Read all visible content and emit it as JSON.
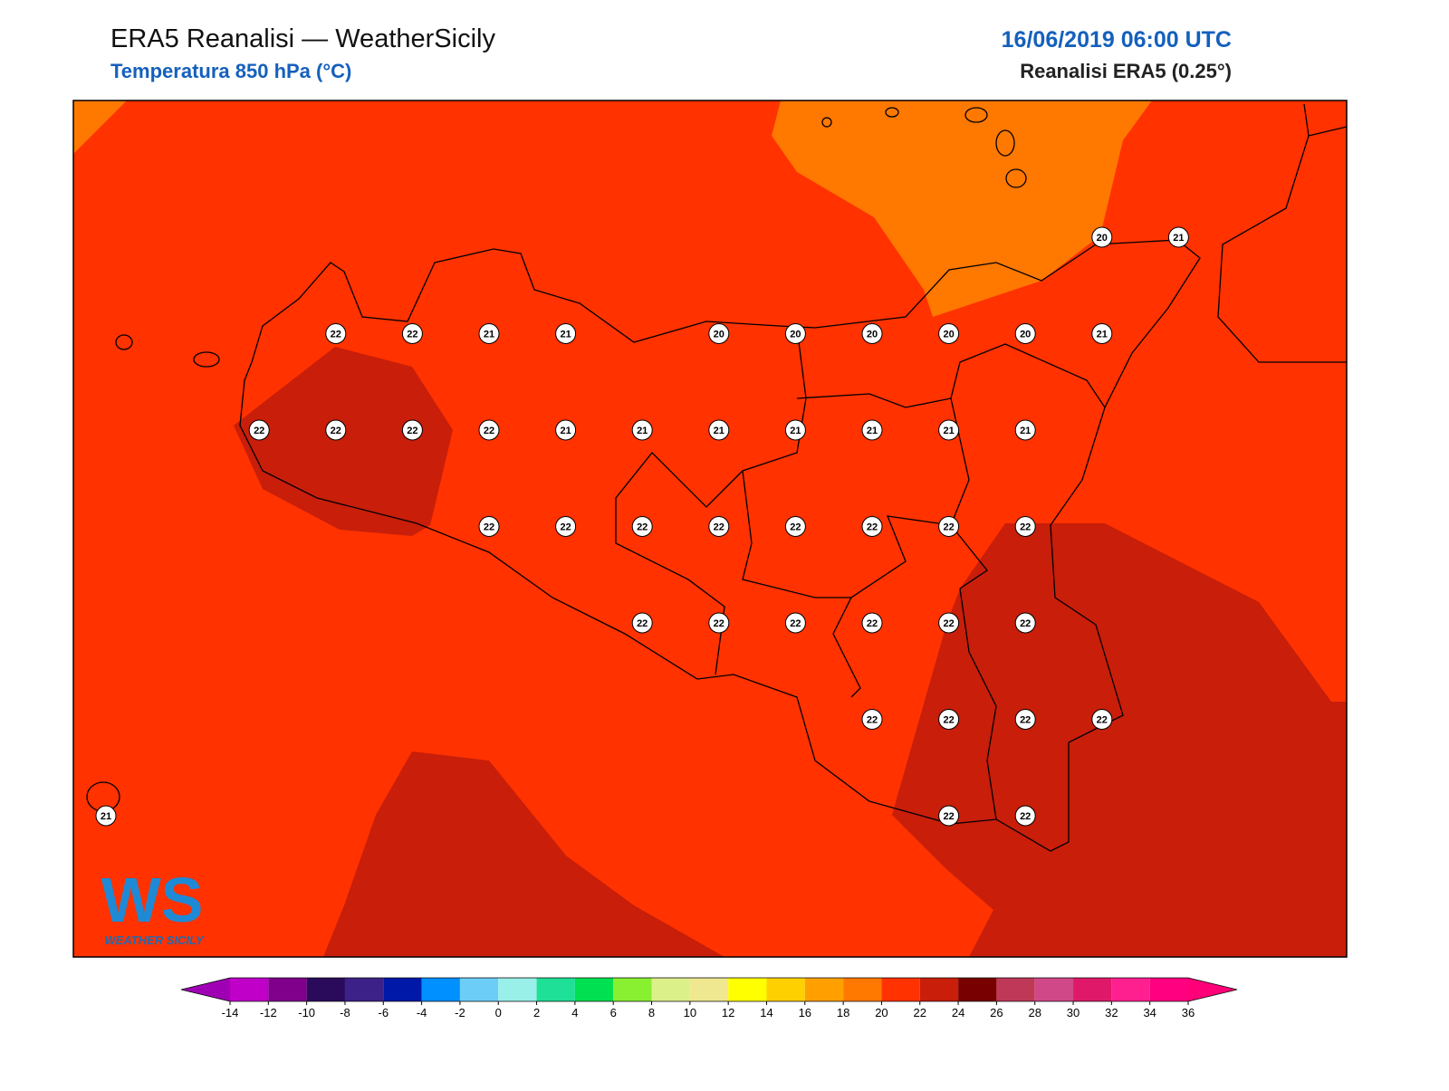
{
  "header": {
    "title": "ERA5 Reanalisi — WeatherSicily",
    "subtitle": "Temperatura 850 hPa (°C)",
    "datetime": "16/06/2019 06:00 UTC",
    "source": "Reanalisi ERA5 (0.25°)"
  },
  "logo": {
    "mark": "WS",
    "text": "WEATHER SICILY"
  },
  "temperature_grid": [
    [
      null,
      null,
      null,
      null,
      null,
      null,
      null,
      null,
      null,
      null,
      null,
      null,
      null,
      20,
      21
    ],
    [
      null,
      null,
      null,
      22,
      22,
      21,
      21,
      null,
      20,
      20,
      20,
      20,
      20,
      21,
      null
    ],
    [
      null,
      null,
      22,
      22,
      22,
      22,
      21,
      21,
      21,
      21,
      21,
      21,
      21,
      null,
      null
    ],
    [
      null,
      null,
      null,
      null,
      null,
      22,
      22,
      22,
      22,
      22,
      22,
      22,
      22,
      null,
      null
    ],
    [
      null,
      null,
      null,
      null,
      null,
      null,
      null,
      22,
      22,
      22,
      22,
      22,
      22,
      null,
      null
    ],
    [
      null,
      null,
      null,
      null,
      null,
      null,
      null,
      null,
      null,
      null,
      22,
      22,
      22,
      22,
      null
    ],
    [
      21,
      null,
      null,
      null,
      null,
      null,
      null,
      null,
      null,
      null,
      null,
      22,
      22,
      null,
      null
    ]
  ],
  "colorbar": {
    "ticks": [
      -14,
      -12,
      -10,
      -8,
      -6,
      -4,
      -2,
      0,
      2,
      4,
      6,
      8,
      10,
      12,
      14,
      16,
      18,
      20,
      22,
      24,
      26,
      28,
      30,
      32,
      34,
      36
    ],
    "colors": [
      "#c000c8",
      "#80008c",
      "#2a0a5a",
      "#3c2288",
      "#0018a8",
      "#0090ff",
      "#6ccdf6",
      "#98f0e8",
      "#1ee096",
      "#00e050",
      "#88f030",
      "#dcf08a",
      "#f0e890",
      "#ffff00",
      "#ffd000",
      "#ffa000",
      "#ff7800",
      "#ff3200",
      "#c81e0a",
      "#780000",
      "#c03858",
      "#d04888",
      "#e0186a",
      "#ff2090",
      "#ff0080"
    ],
    "under": "#a000b4",
    "over": "#ff0078"
  }
}
